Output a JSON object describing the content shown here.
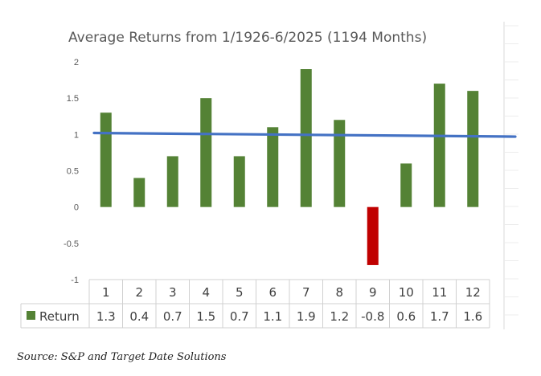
{
  "chart_data": {
    "type": "bar",
    "title": "Average Returns from 1/1926-6/2025 (1194 Months)",
    "categories": [
      "1",
      "2",
      "3",
      "4",
      "5",
      "6",
      "7",
      "8",
      "9",
      "10",
      "11",
      "12"
    ],
    "series": [
      {
        "name": "Return",
        "values": [
          1.3,
          0.4,
          0.7,
          1.5,
          0.7,
          1.1,
          1.9,
          1.2,
          -0.8,
          0.6,
          1.7,
          1.6
        ]
      }
    ],
    "value_labels": [
      "1.3",
      "0.4",
      "0.7",
      "1.5",
      "0.7",
      "1.1",
      "1.9",
      "1.2",
      "-0.8",
      "0.6",
      "1.7",
      "1.6"
    ],
    "yticks": [
      2,
      1.5,
      1,
      0.5,
      0,
      -0.5,
      -1
    ],
    "ytick_labels": [
      "2",
      "1.5",
      "1",
      "0.5",
      "0",
      "-0.5",
      "-1"
    ],
    "ylim": [
      -1,
      2
    ],
    "trendline": {
      "start": 1.02,
      "end": 0.97
    },
    "data_table": true,
    "legend": "data-table",
    "colors": {
      "positive": "#548235",
      "negative": "#c00000",
      "trend": "#4472c4",
      "grid": "#d9d9d9"
    }
  },
  "source": "Source: S&P and Target Date Solutions"
}
